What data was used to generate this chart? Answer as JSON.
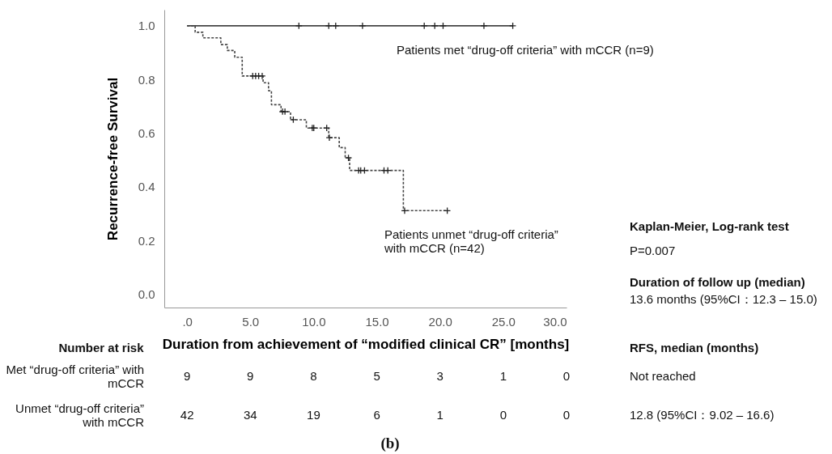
{
  "chart_data": {
    "type": "step",
    "xlabel": "Duration from achievement of “modified clinical CR” [months]",
    "ylabel": "Recurrence-free Survival",
    "xlim": [
      -1.8,
      30
    ],
    "ylim": [
      -0.05,
      1.06
    ],
    "xticks": [
      {
        "value": 0,
        "label": ".0"
      },
      {
        "value": 5,
        "label": "5.0"
      },
      {
        "value": 10,
        "label": "10.0"
      },
      {
        "value": 15,
        "label": "15.0"
      },
      {
        "value": 20,
        "label": "20.0"
      },
      {
        "value": 25,
        "label": "25.0"
      },
      {
        "value": 30,
        "label": "30.0"
      }
    ],
    "yticks": [
      {
        "value": 0,
        "label": "0.0"
      },
      {
        "value": 0.2,
        "label": "0.2"
      },
      {
        "value": 0.4,
        "label": "0.4"
      },
      {
        "value": 0.6,
        "label": "0.6"
      },
      {
        "value": 0.8,
        "label": "0.8"
      },
      {
        "value": 1,
        "label": "1.0"
      }
    ],
    "grid": false,
    "series": [
      {
        "name": "Patients met “drug-off criteria” with mCCR (n=9)",
        "color": "#444444",
        "line_style": "solid",
        "x": [
          0,
          25.75
        ],
        "values": [
          1,
          1
        ]
      },
      {
        "name": "Patients unmet “drug-off criteria” with mCCR (n=42)",
        "color": "#444444",
        "line_style": "dashed",
        "x": [
          0,
          0.64,
          1.25,
          2.67,
          3.18,
          3.77,
          4.36,
          6.01,
          6.44,
          6.67,
          7.43,
          8.18,
          9.43,
          11.2,
          12.03,
          12.5,
          12.85,
          17.1,
          20.57
        ],
        "values": [
          1,
          0.976,
          0.955,
          0.93,
          0.908,
          0.883,
          0.813,
          0.788,
          0.758,
          0.706,
          0.68,
          0.65,
          0.619,
          0.583,
          0.546,
          0.508,
          0.461,
          0.311,
          0.311
        ]
      },
      {
        "type": "scatter",
        "marker": "cross",
        "color": "#222222",
        "x": [
          8.84,
          11.2,
          11.75,
          13.87,
          18.75,
          19.58,
          20.24,
          23.47,
          25.75
        ],
        "values": [
          1,
          1,
          1,
          1,
          1,
          1,
          1,
          1,
          1
        ]
      },
      {
        "type": "scatter",
        "marker": "cross",
        "color": "#222222",
        "x": [
          5.19,
          5.42,
          5.66,
          5.94,
          7.55,
          7.74,
          8.4,
          9.9,
          10.02,
          11.04,
          11.25,
          12.76,
          13.56,
          13.73,
          14.03,
          15.57,
          15.87,
          17.2,
          20.57
        ],
        "values": [
          0.813,
          0.813,
          0.813,
          0.813,
          0.68,
          0.68,
          0.65,
          0.619,
          0.619,
          0.619,
          0.583,
          0.508,
          0.461,
          0.461,
          0.461,
          0.461,
          0.461,
          0.311,
          0.311
        ]
      }
    ],
    "annotations": [
      "Kaplan-Meier, Log-rank test",
      "P=0.007",
      "Duration of follow up (median)",
      "13.6 months (95%CI：12.3 – 15.0)",
      "Number at risk",
      "RFS, median (months)",
      "Met “drug-off criteria” with mCCR",
      "9",
      "9",
      "8",
      "5",
      "3",
      "1",
      "0",
      "Not reached",
      "Unmet “drug-off criteria” with mCCR",
      "42",
      "34",
      "19",
      "6",
      "1",
      "0",
      "0",
      "12.8 (95%CI：9.02 – 16.6)",
      "(b)"
    ]
  }
}
